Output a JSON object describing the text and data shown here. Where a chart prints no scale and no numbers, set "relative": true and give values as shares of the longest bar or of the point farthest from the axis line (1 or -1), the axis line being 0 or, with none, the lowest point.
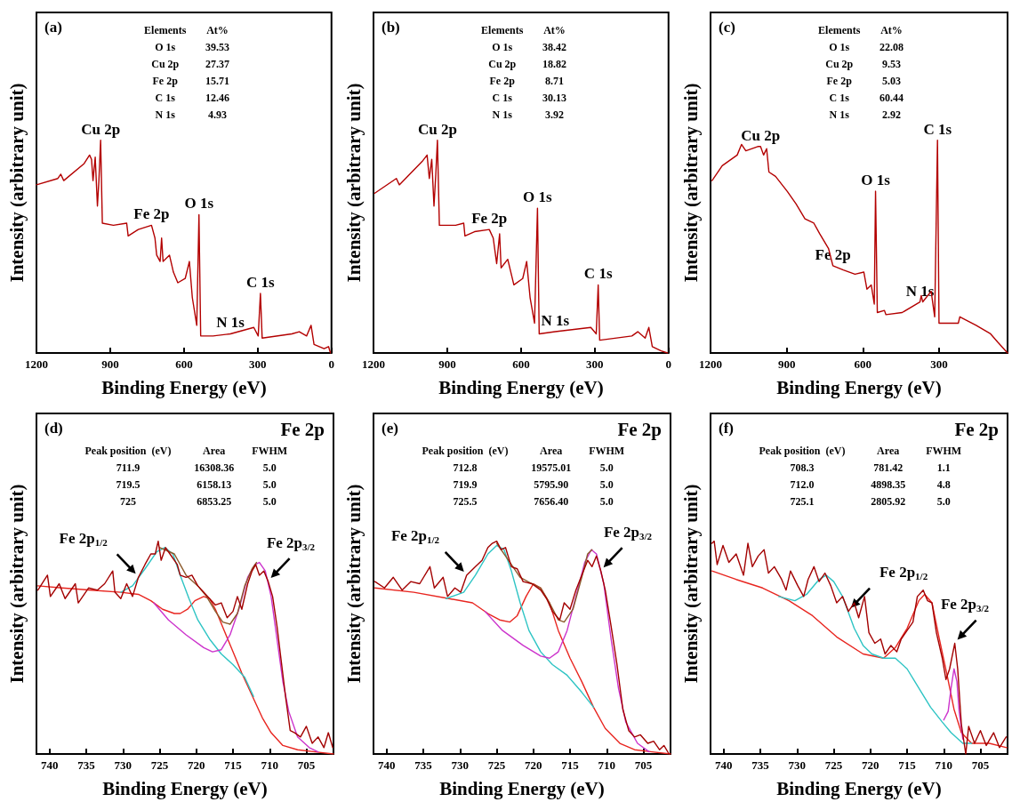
{
  "chart_data": [
    {
      "type": "line",
      "relative": true,
      "title": "(a)",
      "xlabel": "Binding Energy (eV)",
      "ylabel": "Intensity (arbitrary unit)",
      "xlim": [
        1200,
        0
      ],
      "xticks": [
        1200,
        900,
        600,
        300,
        0
      ],
      "annotations": [
        "Elements\tAt%",
        "O 1s\t39.53",
        "Cu 2p\t27.37",
        "Fe 2p\t15.71",
        "C 1s\t12.46",
        "N 1s\t4.93",
        {
          "text": "Cu 2p",
          "x": 939,
          "y": 1.0
        },
        {
          "text": "Fe 2p",
          "x": 732,
          "y": 0.6
        },
        {
          "text": "O 1s",
          "x": 539,
          "y": 0.65
        },
        {
          "text": "N 1s",
          "x": 411,
          "y": 0.09
        },
        {
          "text": "C 1s",
          "x": 289,
          "y": 0.28
        }
      ],
      "series": [
        {
          "color": "#b30000",
          "x": [
            1200,
            1113,
            1101,
            1089,
            1006,
            984,
            976,
            970,
            961,
            952,
            946,
            939,
            932,
            887,
            833,
            827,
            786,
            732,
            718,
            711,
            697,
            691,
            685,
            659,
            643,
            625,
            595,
            578,
            566,
            548,
            539,
            532,
            482,
            411,
            316,
            298,
            289,
            282,
            161,
            131,
            101,
            83,
            71,
            30,
            12,
            4
          ],
          "values": [
            0.79,
            0.82,
            0.84,
            0.81,
            0.89,
            0.93,
            0.91,
            0.81,
            0.92,
            0.69,
            0.81,
            1.0,
            0.61,
            0.6,
            0.61,
            0.55,
            0.58,
            0.6,
            0.54,
            0.46,
            0.43,
            0.54,
            0.43,
            0.46,
            0.38,
            0.33,
            0.35,
            0.43,
            0.26,
            0.13,
            0.65,
            0.08,
            0.08,
            0.09,
            0.12,
            0.08,
            0.28,
            0.07,
            0.09,
            0.1,
            0.08,
            0.13,
            0.04,
            0.02,
            0.03,
            0
          ]
        }
      ]
    },
    {
      "type": "line",
      "relative": true,
      "title": "(b)",
      "xlabel": "Binding Energy (eV)",
      "ylabel": "Intensity (arbitrary unit)",
      "xlim": [
        1200,
        0
      ],
      "xticks": [
        1200,
        900,
        600,
        300,
        0
      ],
      "annotations": [
        "Elements\tAt%",
        "O 1s\t38.42",
        "Cu 2p\t18.82",
        "Fe 2p\t8.71",
        "C 1s\t30.13",
        "N 1s\t3.92",
        {
          "text": "Cu 2p",
          "x": 940,
          "y": 1.0
        },
        {
          "text": "Fe 2p",
          "x": 729,
          "y": 0.58
        },
        {
          "text": "O 1s",
          "x": 533,
          "y": 0.68
        },
        {
          "text": "N 1s",
          "x": 461,
          "y": 0.1
        },
        {
          "text": "C 1s",
          "x": 286,
          "y": 0.32
        }
      ],
      "series": [
        {
          "color": "#b30000",
          "x": [
            1196,
            1107,
            1095,
            1002,
            982,
            973,
            963,
            954,
            947,
            940,
            932,
            866,
            833,
            828,
            789,
            729,
            713,
            699,
            687,
            681,
            654,
            629,
            593,
            577,
            563,
            545,
            533,
            526,
            461,
            316,
            294,
            286,
            280,
            149,
            125,
            95,
            80,
            66,
            30,
            4
          ],
          "values": [
            0.75,
            0.82,
            0.79,
            0.9,
            0.93,
            0.82,
            0.91,
            0.69,
            0.83,
            1.0,
            0.6,
            0.6,
            0.61,
            0.55,
            0.57,
            0.58,
            0.54,
            0.42,
            0.56,
            0.4,
            0.44,
            0.32,
            0.35,
            0.43,
            0.26,
            0.14,
            0.68,
            0.09,
            0.1,
            0.12,
            0.09,
            0.32,
            0.06,
            0.08,
            0.1,
            0.07,
            0.12,
            0.03,
            0.01,
            0
          ]
        }
      ]
    },
    {
      "type": "line",
      "relative": true,
      "title": "(c)",
      "xlabel": "Binding Energy (eV)",
      "ylabel": "Intensity (arbitrary unit)",
      "xlim": [
        1200,
        30
      ],
      "xticks": [
        1200,
        900,
        600,
        300
      ],
      "annotations": [
        "Elements\tAt%",
        "O 1s\t22.08",
        "Cu 2p\t9.53",
        "Fe 2p\t5.03",
        "C 1s\t60.44",
        "N 1s\t2.92",
        {
          "text": "Cu 2p",
          "x": 1003,
          "y": 0.97
        },
        {
          "text": "O 1s",
          "x": 550,
          "y": 0.76
        },
        {
          "text": "Fe 2p",
          "x": 718,
          "y": 0.41
        },
        {
          "text": "N 1s",
          "x": 375,
          "y": 0.24
        },
        {
          "text": "C 1s",
          "x": 306,
          "y": 1.0
        }
      ],
      "series": [
        {
          "color": "#b30000",
          "x": [
            1194,
            1154,
            1095,
            1078,
            1061,
            1014,
            1003,
            991,
            979,
            970,
            944,
            898,
            863,
            828,
            793,
            770,
            735,
            718,
            677,
            631,
            596,
            584,
            567,
            555,
            550,
            543,
            515,
            509,
            445,
            375,
            370,
            364,
            331,
            317,
            306,
            300,
            224,
            218,
            154,
            97,
            68,
            30
          ],
          "values": [
            0.81,
            0.88,
            0.93,
            0.98,
            0.95,
            0.97,
            0.97,
            0.93,
            0.96,
            0.85,
            0.83,
            0.76,
            0.7,
            0.63,
            0.61,
            0.56,
            0.49,
            0.41,
            0.39,
            0.37,
            0.38,
            0.3,
            0.32,
            0.23,
            0.76,
            0.19,
            0.2,
            0.18,
            0.19,
            0.24,
            0.27,
            0.24,
            0.29,
            0.17,
            1.0,
            0.14,
            0.14,
            0.17,
            0.13,
            0.09,
            0.05,
            0
          ]
        }
      ]
    },
    {
      "type": "line",
      "relative": true,
      "title": "(d)",
      "subtitle": "Fe 2p",
      "xlabel": "Binding Energy (eV)",
      "ylabel": "Intensity (arbitrary unit)",
      "xlim": [
        741.8,
        701.3
      ],
      "xticks": [
        740,
        735,
        730,
        725,
        720,
        715,
        710,
        705
      ],
      "annotations": [
        "Peak position  (eV)\tArea\tFWHM",
        "711.9\t16308.36\t5.0",
        "719.5\t6158.13\t5.0",
        "725\t6853.25\t5.0",
        {
          "text": "Fe 2p$_{1/2}$",
          "x": 727.9,
          "y": 0.83
        },
        {
          "text": "Fe 2p$_{3/2}$",
          "x": 710.2,
          "y": 0.81
        }
      ],
      "series": [
        {
          "color": "#e8251f",
          "x": [
            741.6,
            738.3,
            734.3,
            730.3,
            727.9,
            726.2,
            724.6,
            723.0,
            722.2,
            721.2,
            720.2,
            719.0,
            718.2,
            717.4,
            716.2,
            715.0,
            713.8,
            712.2,
            711.0,
            709.8,
            708.2,
            706.2,
            703.8,
            701.3
          ],
          "values": [
            0.79,
            0.78,
            0.77,
            0.76,
            0.75,
            0.72,
            0.68,
            0.66,
            0.66,
            0.68,
            0.72,
            0.74,
            0.73,
            0.68,
            0.58,
            0.48,
            0.38,
            0.26,
            0.17,
            0.1,
            0.04,
            0.02,
            0.01,
            0
          ]
        },
        {
          "color": "#2ec4c4",
          "x": [
            730.3,
            728.7,
            727.0,
            725.4,
            724.3,
            723.2,
            722.2,
            721.0,
            719.8,
            718.2,
            716.6,
            715.0,
            713.4,
            712.2
          ],
          "values": [
            0.76,
            0.79,
            0.87,
            0.95,
            0.97,
            0.94,
            0.84,
            0.73,
            0.63,
            0.54,
            0.47,
            0.42,
            0.36,
            0.27
          ]
        },
        {
          "color": "#cc33cc",
          "x": [
            725.8,
            723.8,
            721.4,
            719.0,
            717.8,
            716.6,
            715.4,
            714.2,
            713.0,
            712.0,
            711.4,
            710.6,
            709.8,
            709.0,
            708.2,
            707.4,
            706.2,
            704.6,
            703.4
          ],
          "values": [
            0.71,
            0.63,
            0.56,
            0.5,
            0.48,
            0.49,
            0.56,
            0.68,
            0.83,
            0.89,
            0.9,
            0.86,
            0.74,
            0.54,
            0.34,
            0.2,
            0.08,
            0.03,
            0.01
          ]
        },
        {
          "color": "#8b5a2b",
          "x": [
            725.0,
            723.0,
            721.4,
            719.8,
            718.6,
            717.4,
            716.4,
            715.4,
            714.4,
            713.4,
            712.4,
            711.8
          ],
          "values": [
            0.97,
            0.94,
            0.84,
            0.79,
            0.74,
            0.67,
            0.62,
            0.61,
            0.66,
            0.79,
            0.87,
            0.9
          ]
        },
        {
          "color": "#a30000",
          "x": [
            741.6,
            740.3,
            739.9,
            738.7,
            737.9,
            736.5,
            736.1,
            734.7,
            733.5,
            732.5,
            731.4,
            731.1,
            730.3,
            729.5,
            728.7,
            727.9,
            727.0,
            726.2,
            725.6,
            725.2,
            724.8,
            724.2,
            723.6,
            722.6,
            722.2,
            721.4,
            720.6,
            719.8,
            719.0,
            718.2,
            717.4,
            716.6,
            715.8,
            715.0,
            714.4,
            713.8,
            713.0,
            712.4,
            711.9,
            711.4,
            710.8,
            710.2,
            709.6,
            709.0,
            708.4,
            707.8,
            707.2,
            706.6,
            705.8,
            705.0,
            704.2,
            703.4,
            702.6,
            702.0,
            701.4
          ],
          "values": [
            0.77,
            0.84,
            0.74,
            0.8,
            0.73,
            0.8,
            0.71,
            0.78,
            0.77,
            0.8,
            0.86,
            0.76,
            0.73,
            0.8,
            0.74,
            0.83,
            0.89,
            0.94,
            0.94,
            1.0,
            0.91,
            0.97,
            0.94,
            0.89,
            0.84,
            0.83,
            0.84,
            0.79,
            0.76,
            0.73,
            0.7,
            0.71,
            0.64,
            0.67,
            0.74,
            0.68,
            0.8,
            0.86,
            0.89,
            0.84,
            0.86,
            0.81,
            0.74,
            0.6,
            0.43,
            0.26,
            0.11,
            0.1,
            0.08,
            0.13,
            0.05,
            0.08,
            0.03,
            0.1,
            0.03
          ]
        }
      ]
    },
    {
      "type": "line",
      "relative": true,
      "title": "(e)",
      "subtitle": "Fe 2p",
      "xlabel": "Binding Energy (eV)",
      "ylabel": "Intensity (arbitrary unit)",
      "xlim": [
        741.8,
        701.3
      ],
      "xticks": [
        740,
        735,
        730,
        725,
        720,
        715,
        710,
        705
      ],
      "annotations": [
        "Peak position  (eV)\tArea\tFWHM",
        "712.8\t19575.01\t5.0",
        "719.9\t5795.90\t5.0",
        "725.5\t7656.40\t5.0",
        {
          "text": "Fe 2p$_{1/2}$",
          "x": 729.1,
          "y": 0.84
        },
        {
          "text": "Fe 2p$_{3/2}$",
          "x": 710.8,
          "y": 0.86
        }
      ],
      "series": [
        {
          "color": "#e8251f",
          "x": [
            741.6,
            736.3,
            731.5,
            728.3,
            726.2,
            724.6,
            723.2,
            722.2,
            721.0,
            720.0,
            719.0,
            717.8,
            716.6,
            715.0,
            713.4,
            711.8,
            710.2,
            708.2,
            706.2,
            703.8,
            701.3
          ],
          "values": [
            0.78,
            0.76,
            0.73,
            0.71,
            0.66,
            0.63,
            0.62,
            0.65,
            0.74,
            0.8,
            0.78,
            0.71,
            0.58,
            0.45,
            0.34,
            0.22,
            0.12,
            0.05,
            0.02,
            0.01,
            0
          ]
        },
        {
          "color": "#2ec4c4",
          "x": [
            731.9,
            729.5,
            727.9,
            726.2,
            725.0,
            724.0,
            723.0,
            721.8,
            720.6,
            719.0,
            717.4,
            715.4,
            713.4,
            711.8
          ],
          "values": [
            0.73,
            0.76,
            0.84,
            0.94,
            0.98,
            0.96,
            0.86,
            0.71,
            0.58,
            0.48,
            0.42,
            0.37,
            0.29,
            0.22
          ]
        },
        {
          "color": "#cc33cc",
          "x": [
            726.6,
            724.2,
            721.4,
            719.0,
            717.8,
            716.6,
            715.4,
            714.2,
            713.0,
            712.1,
            711.4,
            710.4,
            709.4,
            708.4,
            707.4,
            705.8,
            704.2
          ],
          "values": [
            0.67,
            0.58,
            0.51,
            0.46,
            0.45,
            0.48,
            0.58,
            0.74,
            0.9,
            0.96,
            0.94,
            0.8,
            0.54,
            0.31,
            0.15,
            0.05,
            0.01
          ]
        },
        {
          "color": "#8b5a2b",
          "x": [
            725.0,
            723.4,
            721.8,
            720.2,
            719.0,
            717.8,
            716.6,
            715.8,
            714.6,
            713.4,
            712.6,
            712.0
          ],
          "values": [
            0.99,
            0.91,
            0.83,
            0.8,
            0.78,
            0.71,
            0.63,
            0.62,
            0.68,
            0.83,
            0.94,
            0.96
          ]
        },
        {
          "color": "#a30000",
          "x": [
            741.6,
            740.3,
            739.1,
            737.9,
            736.7,
            735.5,
            734.1,
            733.5,
            732.3,
            731.7,
            730.7,
            729.9,
            729.1,
            727.9,
            727.0,
            726.2,
            725.6,
            725.0,
            724.4,
            723.8,
            723.0,
            722.2,
            721.4,
            720.2,
            719.0,
            718.2,
            717.4,
            716.4,
            715.8,
            715.0,
            714.2,
            713.4,
            712.6,
            712.0,
            711.4,
            710.8,
            710.2,
            709.4,
            708.6,
            707.8,
            707.0,
            706.2,
            705.4,
            704.4,
            703.6,
            702.8,
            702.2,
            701.5
          ],
          "values": [
            0.81,
            0.78,
            0.83,
            0.77,
            0.81,
            0.8,
            0.88,
            0.78,
            0.83,
            0.74,
            0.78,
            0.76,
            0.84,
            0.88,
            0.91,
            0.97,
            0.99,
            1.0,
            0.96,
            0.97,
            0.88,
            0.87,
            0.81,
            0.8,
            0.77,
            0.73,
            0.67,
            0.63,
            0.71,
            0.68,
            0.77,
            0.84,
            0.91,
            0.88,
            0.93,
            0.86,
            0.77,
            0.6,
            0.42,
            0.21,
            0.11,
            0.08,
            0.09,
            0.05,
            0.06,
            0.02,
            0.04,
            0
          ]
        }
      ]
    },
    {
      "type": "line",
      "relative": true,
      "title": "(f)",
      "subtitle": "Fe 2p",
      "xlabel": "Binding Energy (eV)",
      "ylabel": "Intensity (arbitrary unit)",
      "xlim": [
        741.8,
        701.3
      ],
      "xticks": [
        740,
        735,
        730,
        725,
        720,
        715,
        710,
        705
      ],
      "annotations": [
        "Peak position  (eV)\tArea\tFWHM",
        "708.3\t781.42\t1.1",
        "712.0\t4898.35\t4.8",
        "725.1\t2805.92\t5.0",
        {
          "text": "Fe 2p$_{1/2}$",
          "x": 723.0,
          "y": 0.67
        },
        {
          "text": "Fe 2p$_{3/2}$",
          "x": 708.5,
          "y": 0.52
        }
      ],
      "series": [
        {
          "color": "#e8251f",
          "x": [
            741.6,
            738.3,
            734.7,
            731.1,
            727.9,
            724.6,
            721.0,
            718.2,
            716.6,
            715.0,
            713.4,
            712.6,
            711.6,
            710.6,
            709.6,
            708.6,
            707.6,
            706.2,
            703.8,
            701.4
          ],
          "values": [
            0.86,
            0.82,
            0.78,
            0.72,
            0.65,
            0.55,
            0.47,
            0.45,
            0.5,
            0.59,
            0.72,
            0.75,
            0.71,
            0.54,
            0.38,
            0.21,
            0.1,
            0.05,
            0.05,
            0.03
          ]
        },
        {
          "color": "#2ec4c4",
          "x": [
            732.5,
            730.3,
            728.7,
            727.0,
            726.0,
            725.0,
            723.8,
            722.2,
            721.0,
            719.8,
            718.2,
            716.6,
            715.0,
            713.4,
            711.8,
            710.2,
            709.0,
            707.4,
            706.2
          ],
          "values": [
            0.74,
            0.72,
            0.75,
            0.82,
            0.84,
            0.81,
            0.74,
            0.59,
            0.51,
            0.47,
            0.45,
            0.45,
            0.4,
            0.31,
            0.22,
            0.15,
            0.1,
            0.05,
            0.05
          ]
        },
        {
          "color": "#cc33cc",
          "x": [
            710.0,
            709.4,
            709.0,
            708.6,
            708.2,
            707.9,
            707.4
          ],
          "values": [
            0.16,
            0.2,
            0.31,
            0.4,
            0.34,
            0.2,
            0.07
          ]
        },
        {
          "color": "#a30000",
          "x": [
            741.6,
            741.3,
            740.9,
            740.1,
            739.3,
            738.3,
            737.3,
            736.7,
            736.1,
            735.3,
            734.5,
            733.9,
            733.1,
            732.1,
            731.5,
            730.9,
            729.9,
            729.1,
            728.5,
            727.7,
            727.0,
            726.2,
            725.4,
            724.6,
            723.8,
            723.0,
            722.2,
            721.6,
            720.8,
            720.2,
            719.4,
            718.6,
            718.0,
            717.2,
            716.4,
            715.8,
            715.0,
            714.2,
            713.6,
            712.8,
            712.2,
            711.6,
            711.0,
            710.2,
            709.7,
            709.2,
            708.5,
            708.1,
            707.6,
            707.0,
            706.6,
            705.8,
            705.0,
            704.2,
            703.2,
            702.4,
            701.5
          ],
          "values": [
            0.99,
            1.0,
            0.89,
            0.98,
            0.9,
            0.94,
            0.84,
            0.99,
            0.88,
            0.93,
            0.96,
            0.85,
            0.88,
            0.82,
            0.77,
            0.86,
            0.79,
            0.74,
            0.82,
            0.88,
            0.81,
            0.85,
            0.79,
            0.71,
            0.74,
            0.67,
            0.71,
            0.64,
            0.74,
            0.57,
            0.52,
            0.54,
            0.47,
            0.51,
            0.48,
            0.54,
            0.58,
            0.62,
            0.74,
            0.77,
            0.72,
            0.71,
            0.57,
            0.45,
            0.35,
            0.4,
            0.52,
            0.4,
            0.14,
            0,
            0.13,
            0.05,
            0.11,
            0.04,
            0.1,
            0.03,
            0.08
          ]
        }
      ]
    }
  ]
}
